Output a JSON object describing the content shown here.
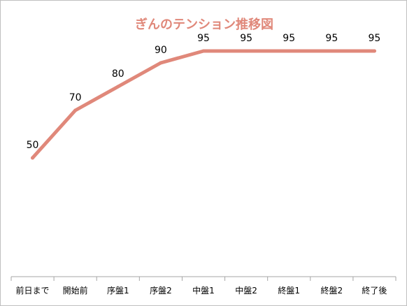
{
  "chart_data": {
    "type": "line",
    "title": "ぎんのテンション推移図",
    "categories": [
      "前日まで",
      "開始前",
      "序盤1",
      "序盤2",
      "中盤1",
      "中盤2",
      "終盤1",
      "終盤2",
      "終了後"
    ],
    "series": [
      {
        "values": [
          50,
          70,
          80,
          90,
          95,
          95,
          95,
          95,
          95
        ]
      }
    ],
    "ylim": [
      0,
      115
    ],
    "grid": false,
    "legend": "none",
    "data_labels": true,
    "line_color": "#e0887a",
    "title_color": "#e0887a",
    "axis_color": "#a6a6a6"
  }
}
